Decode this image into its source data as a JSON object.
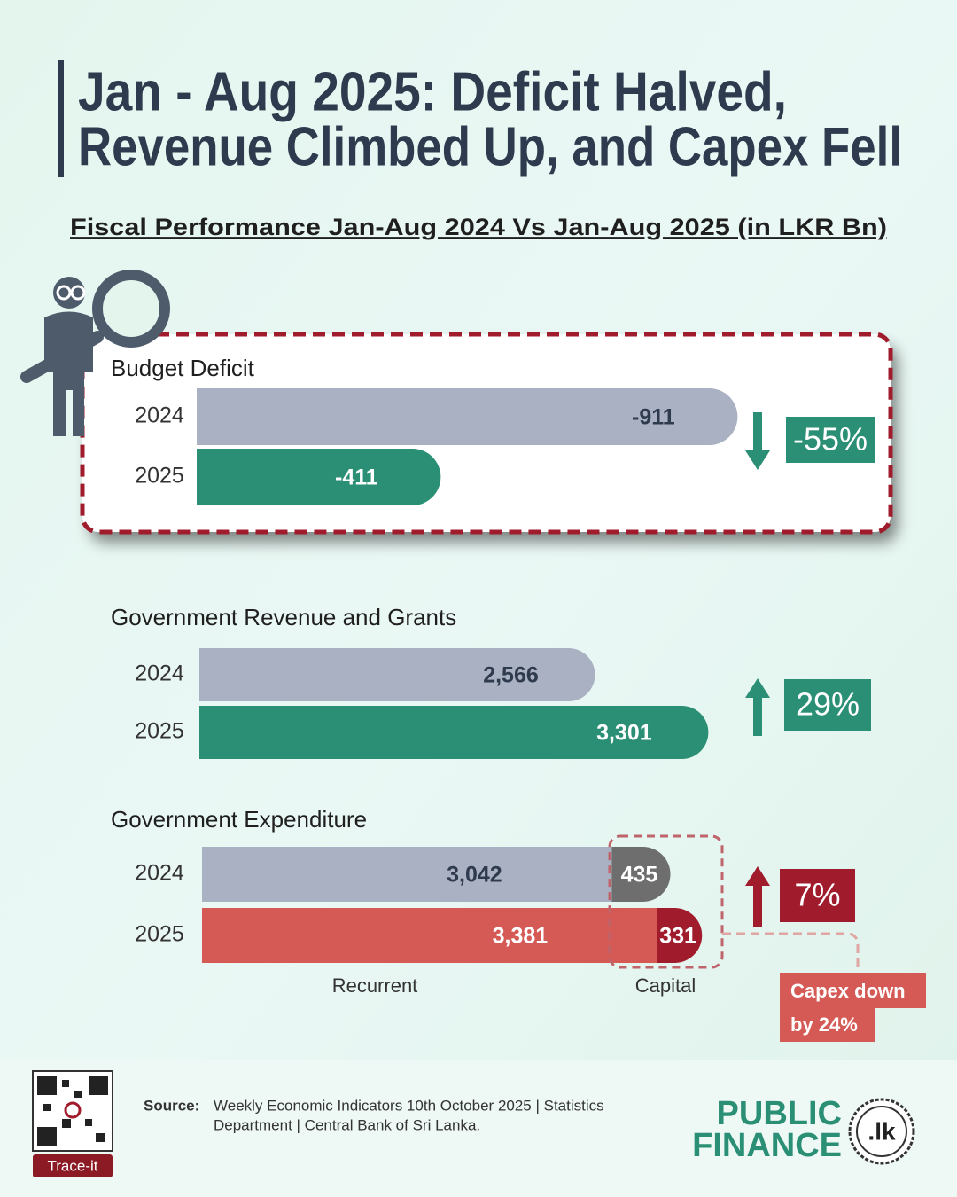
{
  "title": [
    "Jan - Aug 2025: Deficit Halved,",
    "Revenue Climbed Up, and Capex Fell"
  ],
  "subtitle": "Fiscal Performance Jan-Aug 2024 Vs Jan-Aug 2025 (in LKR Bn)",
  "chart_data": [
    {
      "type": "bar",
      "title": "Budget Deficit",
      "categories": [
        "2024",
        "2025"
      ],
      "values": [
        -911,
        -411
      ],
      "colors": [
        "#a9b1c2",
        "#2a8f74"
      ],
      "label_colors": [
        "#2e3a4d",
        "#ffffff"
      ],
      "annotation": "-55%",
      "annotation_color": "#2a8f74",
      "trend": "down"
    },
    {
      "type": "bar",
      "title": "Government Revenue and Grants",
      "categories": [
        "2024",
        "2025"
      ],
      "values": [
        2566,
        3301
      ],
      "value_labels": [
        "2,566",
        "3,301"
      ],
      "colors": [
        "#a9b1c2",
        "#2a8f74"
      ],
      "label_colors": [
        "#2e3a4d",
        "#ffffff"
      ],
      "annotation": "29%",
      "annotation_color": "#2a8f74",
      "trend": "up"
    },
    {
      "type": "stacked_bar",
      "title": "Government Expenditure",
      "categories": [
        "2024",
        "2025"
      ],
      "series": [
        {
          "name": "Recurrent",
          "values": [
            3042,
            3381
          ],
          "value_labels": [
            "3,042",
            "3,381"
          ],
          "colors": [
            "#a9b1c2",
            "#d55a55"
          ],
          "label_colors": [
            "#2e3a4d",
            "#ffffff"
          ]
        },
        {
          "name": "Capital",
          "values": [
            435,
            331
          ],
          "colors": [
            "#6e6e6e",
            "#a01c2c"
          ],
          "label_colors": [
            "#ffffff",
            "#ffffff"
          ]
        }
      ],
      "annotation": "7%",
      "annotation_color": "#a01c2c",
      "trend": "up",
      "note": [
        "Capex down",
        "by 24%"
      ],
      "note_color": "#d55a55"
    }
  ],
  "source": {
    "label": "Source:",
    "lines": [
      "Weekly Economic Indicators 10th October 2025 | Statistics",
      "Department | Central Bank of Sri Lanka."
    ]
  },
  "qr_label": "Trace-it",
  "logo": [
    "PUBLIC",
    "FINANCE",
    ".lk"
  ]
}
